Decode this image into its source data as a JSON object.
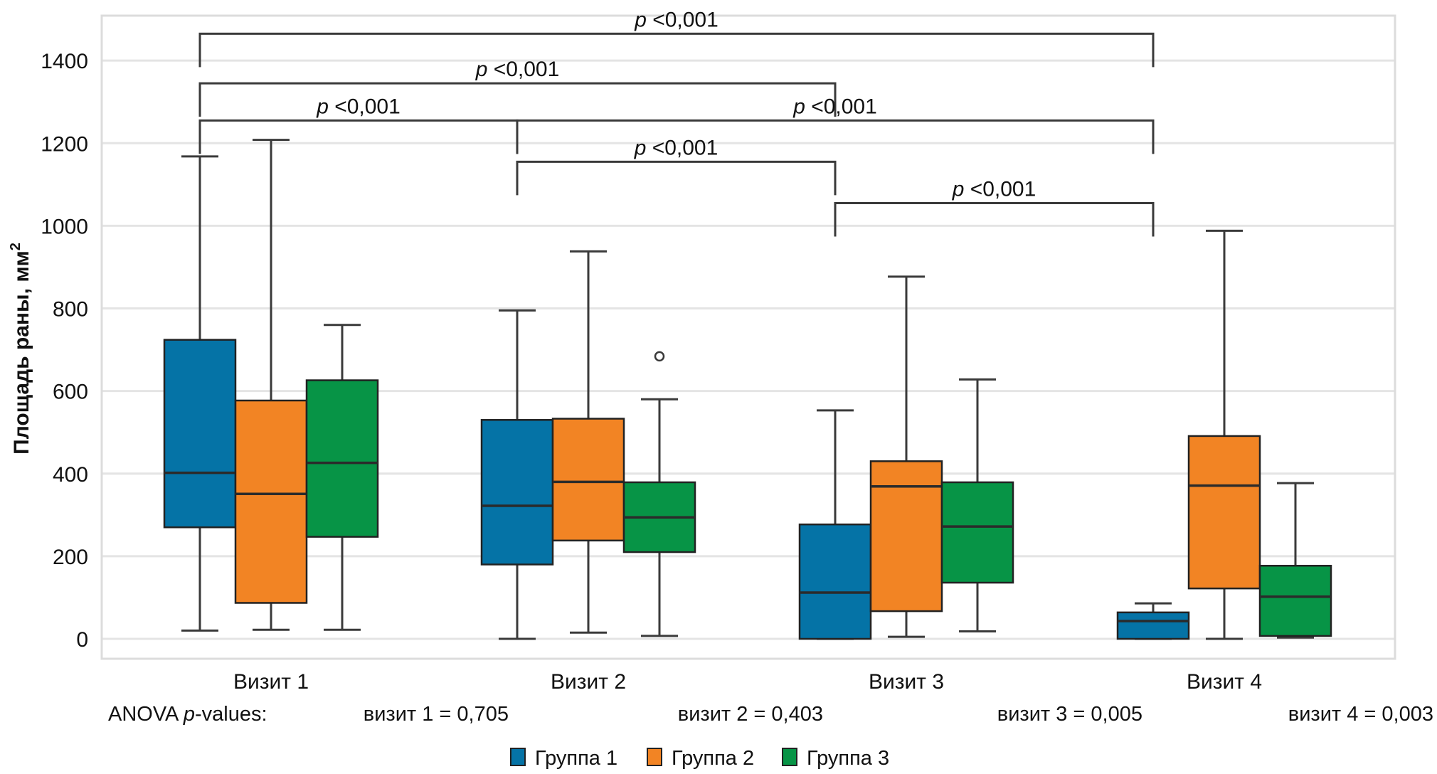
{
  "chart_data": {
    "type": "boxplot",
    "title": "",
    "xlabel": "",
    "ylabel": "Площадь раны, мм",
    "ylabel_superscript": "2",
    "ylim": [
      -40,
      1580
    ],
    "yticks": [
      0,
      200,
      400,
      600,
      800,
      1000,
      1200,
      1400
    ],
    "grid": true,
    "categories": [
      "Визит 1",
      "Визит 2",
      "Визит 3",
      "Визит 4"
    ],
    "series": [
      {
        "name": "Группа 1",
        "color": "#0573a6",
        "boxes": [
          {
            "min": 20,
            "q1": 270,
            "median": 402,
            "q3": 724,
            "max": 1168,
            "outliers": []
          },
          {
            "min": 0,
            "q1": 180,
            "median": 322,
            "q3": 530,
            "max": 795,
            "outliers": []
          },
          {
            "min": 0,
            "q1": 0,
            "median": 112,
            "q3": 277,
            "max": 553,
            "outliers": []
          },
          {
            "min": 0,
            "q1": 0,
            "median": 43,
            "q3": 64,
            "max": 86,
            "outliers": []
          }
        ]
      },
      {
        "name": "Группа 2",
        "color": "#f28424",
        "boxes": [
          {
            "min": 22,
            "q1": 87,
            "median": 351,
            "q3": 577,
            "max": 1208,
            "outliers": []
          },
          {
            "min": 15,
            "q1": 238,
            "median": 380,
            "q3": 533,
            "max": 938,
            "outliers": []
          },
          {
            "min": 5,
            "q1": 67,
            "median": 369,
            "q3": 430,
            "max": 877,
            "outliers": []
          },
          {
            "min": 0,
            "q1": 122,
            "median": 371,
            "q3": 491,
            "max": 988,
            "outliers": []
          }
        ]
      },
      {
        "name": "Группа 3",
        "color": "#079446",
        "boxes": [
          {
            "min": 22,
            "q1": 247,
            "median": 426,
            "q3": 626,
            "max": 760,
            "outliers": []
          },
          {
            "min": 7,
            "q1": 210,
            "median": 294,
            "q3": 379,
            "max": 580,
            "outliers": [
              684
            ]
          },
          {
            "min": 18,
            "q1": 136,
            "median": 272,
            "q3": 379,
            "max": 628,
            "outliers": []
          },
          {
            "min": 3,
            "q1": 7,
            "median": 102,
            "q3": 177,
            "max": 377,
            "outliers": []
          }
        ]
      }
    ],
    "significance_brackets": [
      {
        "from": "Визит 1",
        "to": "Визит 4",
        "label_p": "p",
        "label_rest": " <0,001",
        "level": 1465
      },
      {
        "from": "Визит 1",
        "to": "Визит 3",
        "label_p": "p",
        "label_rest": " <0,001",
        "level": 1345
      },
      {
        "from": "Визит 1",
        "to": "Визит 2",
        "label_p": "p",
        "label_rest": " <0,001",
        "level": 1255
      },
      {
        "from": "Визит 2",
        "to": "Визит 4",
        "label_p": "p",
        "label_rest": " <0,001",
        "level": 1255
      },
      {
        "from": "Визит 2",
        "to": "Визит 3",
        "label_p": "p",
        "label_rest": " <0,001",
        "level": 1155
      },
      {
        "from": "Визит 3",
        "to": "Визит 4",
        "label_p": "p",
        "label_rest": " <0,001",
        "level": 1055
      }
    ],
    "anova": {
      "label_prefix": "ANOVA ",
      "label_p": "p",
      "label_suffix": "-values:",
      "values": [
        "визит 1 = 0,705",
        "визит 2 = 0,403",
        "визит 3 = 0,005",
        "визит 4 = 0,003"
      ]
    },
    "legend": {
      "position": "bottom-center",
      "items": [
        "Группа 1",
        "Группа 2",
        "Группа 3"
      ]
    }
  },
  "colors": {
    "grid": "#e4e4e4",
    "frame": "#dcdcdc",
    "line": "#3a3a3a"
  }
}
